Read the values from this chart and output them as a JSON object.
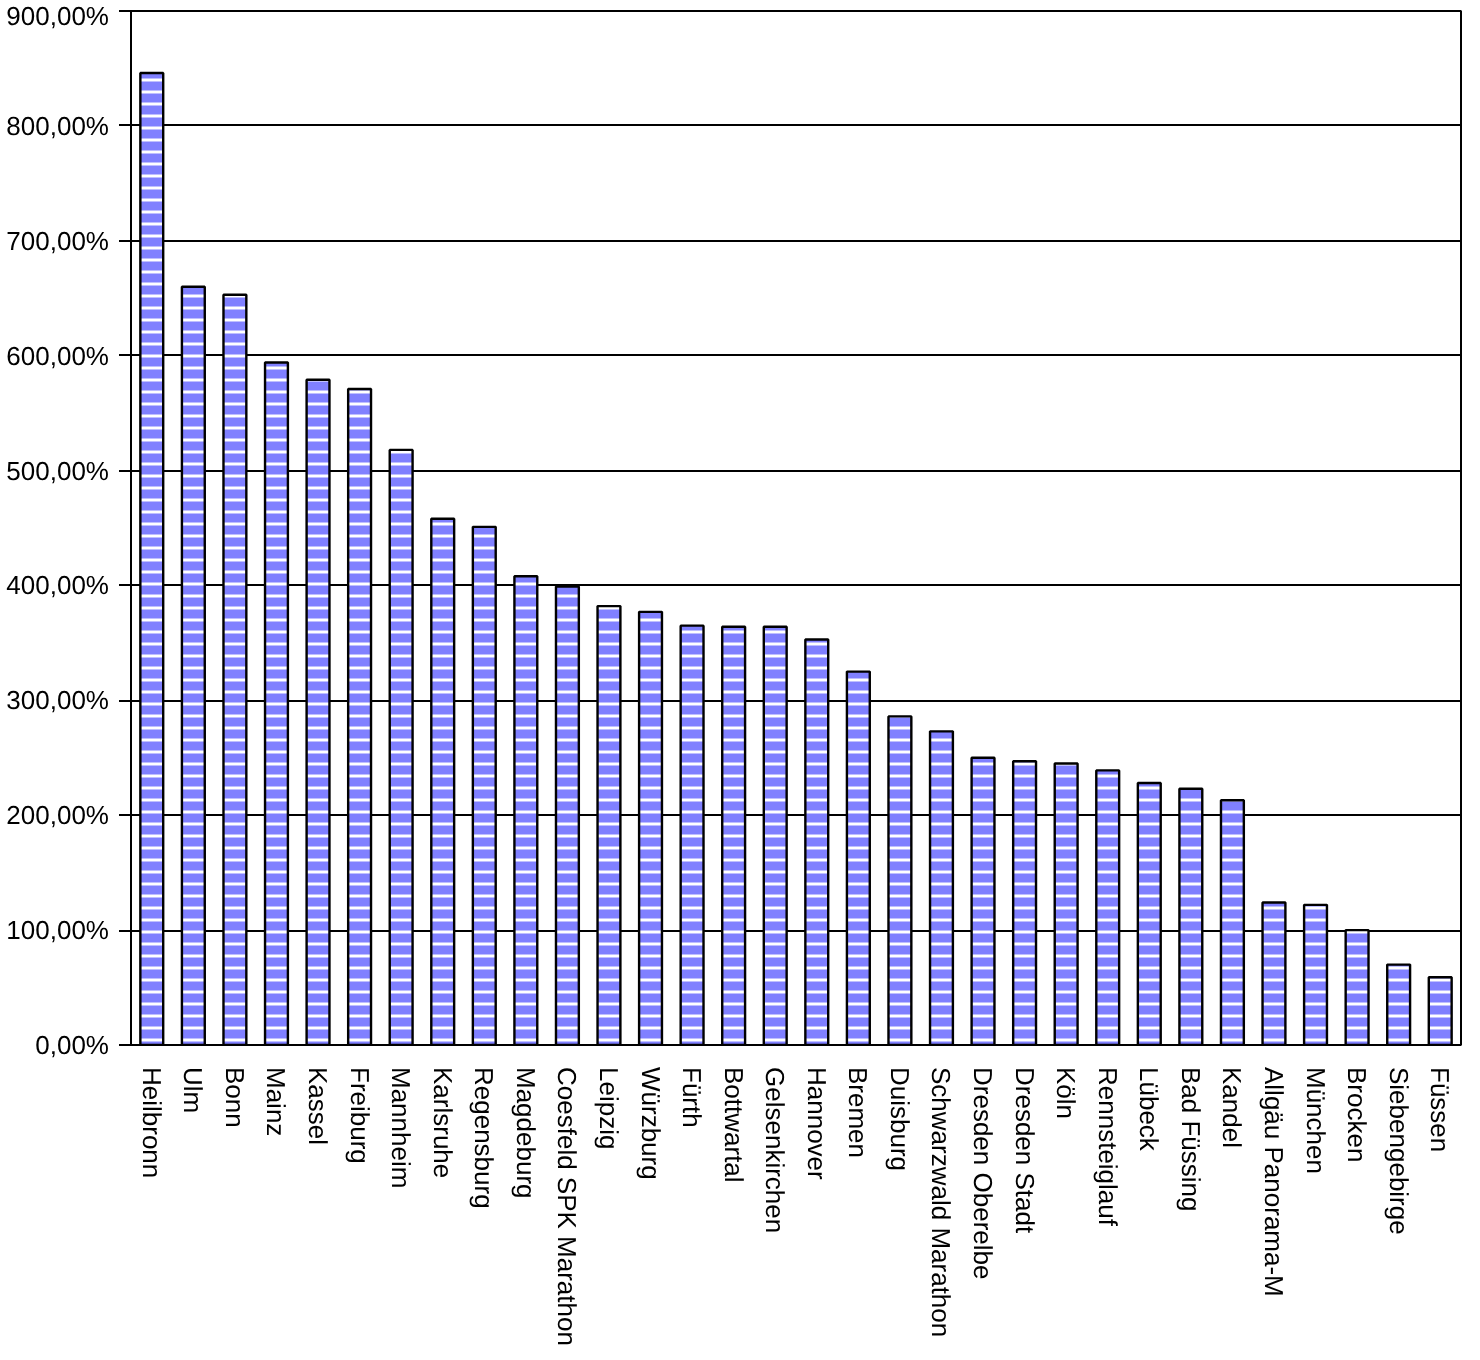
{
  "chart_data": {
    "type": "bar",
    "categories": [
      "Heilbronn",
      "Ulm",
      "Bonn",
      "Mainz",
      "Kassel",
      "Freiburg",
      "Mannheim",
      "Karlsruhe",
      "Regensburg",
      "Magdeburg",
      "Coesfeld SPK Marathon",
      "Leipzig",
      "Würzburg",
      "Fürth",
      "Bottwartal",
      "Gelsenkirchen",
      "Hannover",
      "Bremen",
      "Duisburg",
      "Schwarzwald Marathon",
      "Dresden Oberelbe",
      "Dresden Stadt",
      "Köln",
      "Rennsteiglauf",
      "Lübeck",
      "Bad Füssing",
      "Kandel",
      "Allgäu Panorama-M",
      "München",
      "Brocken",
      "Siebengebirge",
      "Füssen"
    ],
    "values": [
      846,
      660,
      653,
      594,
      579,
      571,
      518,
      458,
      451,
      408,
      399,
      382,
      377,
      365,
      364,
      364,
      353,
      325,
      286,
      273,
      250,
      247,
      245,
      239,
      228,
      223,
      213,
      124,
      122,
      100,
      70,
      59
    ],
    "color": "#8080ff",
    "ylim": [
      0,
      900
    ],
    "yticks": [
      {
        "value": 0,
        "label": "0,00%"
      },
      {
        "value": 100,
        "label": "100,00%"
      },
      {
        "value": 200,
        "label": "200,00%"
      },
      {
        "value": 300,
        "label": "300,00%"
      },
      {
        "value": 400,
        "label": "400,00%"
      },
      {
        "value": 500,
        "label": "500,00%"
      },
      {
        "value": 600,
        "label": "600,00%"
      },
      {
        "value": 700,
        "label": "700,00%"
      },
      {
        "value": 800,
        "label": "800,00%"
      },
      {
        "value": 900,
        "label": "900,00%"
      }
    ],
    "grid": "y"
  }
}
